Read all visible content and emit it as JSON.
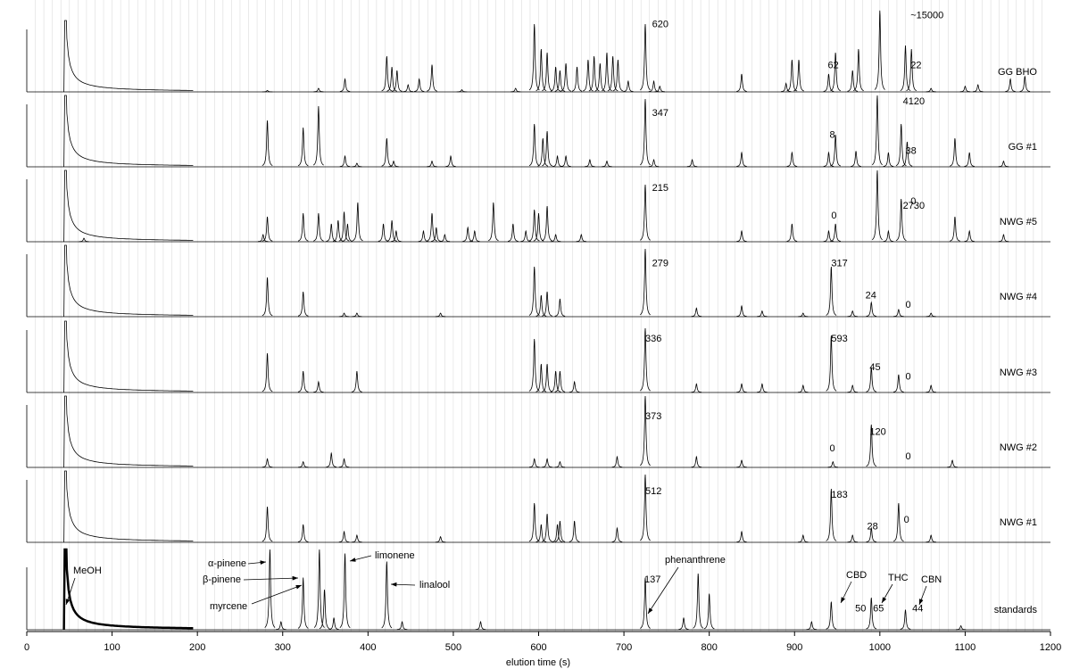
{
  "chart_data": {
    "type": "chromatogram",
    "xlabel": "elution time (s)",
    "xlim": [
      0,
      1200
    ],
    "xticks": [
      0,
      100,
      200,
      300,
      400,
      500,
      600,
      700,
      800,
      900,
      1000,
      1100,
      1200
    ],
    "grid": true,
    "minor_grid_step": 10,
    "color": "#000000",
    "series": [
      {
        "name": "GG BHO",
        "x": [
          45,
          282,
          342,
          373,
          422,
          428,
          434,
          447,
          460,
          475,
          510,
          573,
          595,
          603,
          610,
          620,
          625,
          632,
          645,
          658,
          665,
          672,
          680,
          687,
          693,
          705,
          725,
          735,
          742,
          838,
          890,
          897,
          905,
          940,
          948,
          968,
          975,
          1000,
          1030,
          1037,
          1060,
          1100,
          1115,
          1153,
          1170
        ],
        "values": [
          100,
          2,
          5,
          18,
          50,
          35,
          30,
          10,
          18,
          38,
          3,
          5,
          95,
          60,
          55,
          35,
          30,
          40,
          35,
          45,
          50,
          40,
          55,
          50,
          45,
          15,
          95,
          15,
          8,
          25,
          12,
          45,
          45,
          25,
          55,
          30,
          60,
          114,
          65,
          60,
          5,
          8,
          10,
          18,
          22
        ],
        "annotations": [
          {
            "x": 733,
            "y": 94,
            "label": "620"
          },
          {
            "x": 939,
            "y": 37,
            "label": "62"
          },
          {
            "x": 1036,
            "y": 107,
            "label": "~15000"
          },
          {
            "x": 1036,
            "y": 37,
            "label": "22"
          }
        ]
      },
      {
        "name": "GG #1",
        "x": [
          45,
          282,
          324,
          342,
          373,
          387,
          422,
          430,
          475,
          497,
          595,
          605,
          610,
          622,
          632,
          660,
          680,
          725,
          735,
          780,
          838,
          897,
          940,
          948,
          972,
          997,
          1010,
          1025,
          1032,
          1088,
          1105,
          1145
        ],
        "values": [
          100,
          65,
          55,
          85,
          15,
          5,
          40,
          8,
          8,
          15,
          60,
          40,
          50,
          15,
          15,
          10,
          8,
          95,
          10,
          10,
          20,
          20,
          20,
          45,
          22,
          100,
          20,
          60,
          35,
          40,
          20,
          8
        ],
        "annotations": [
          {
            "x": 733,
            "y": 75,
            "label": "347"
          },
          {
            "x": 941,
            "y": 44,
            "label": "8"
          },
          {
            "x": 1027,
            "y": 91,
            "label": "4120"
          },
          {
            "x": 1030,
            "y": 22,
            "label": "38"
          }
        ]
      },
      {
        "name": "NWG #5",
        "x": [
          45,
          67,
          277,
          282,
          324,
          342,
          357,
          365,
          372,
          376,
          388,
          418,
          428,
          433,
          465,
          475,
          480,
          490,
          517,
          525,
          547,
          570,
          585,
          595,
          600,
          610,
          620,
          650,
          725,
          838,
          897,
          940,
          948,
          997,
          1010,
          1025,
          1088,
          1105,
          1145
        ],
        "values": [
          100,
          5,
          10,
          35,
          40,
          40,
          25,
          30,
          42,
          25,
          55,
          25,
          30,
          15,
          15,
          40,
          20,
          10,
          20,
          15,
          55,
          25,
          15,
          45,
          40,
          50,
          10,
          10,
          80,
          15,
          25,
          15,
          25,
          100,
          15,
          60,
          35,
          15,
          10
        ],
        "annotations": [
          {
            "x": 733,
            "y": 75,
            "label": "215"
          },
          {
            "x": 943,
            "y": 36,
            "label": "0"
          },
          {
            "x": 1027,
            "y": 50,
            "label": "2730"
          },
          {
            "x": 1036,
            "y": 56,
            "label": "0"
          }
        ]
      },
      {
        "name": "NWG #4",
        "x": [
          45,
          282,
          324,
          372,
          387,
          485,
          595,
          603,
          610,
          625,
          725,
          785,
          838,
          862,
          910,
          943,
          968,
          990,
          1022,
          1060
        ],
        "values": [
          100,
          55,
          35,
          5,
          5,
          5,
          70,
          30,
          35,
          25,
          95,
          12,
          15,
          8,
          5,
          70,
          8,
          20,
          10,
          5
        ],
        "annotations": [
          {
            "x": 733,
            "y": 74,
            "label": "279"
          },
          {
            "x": 943,
            "y": 74,
            "label": "317"
          },
          {
            "x": 983,
            "y": 29,
            "label": "24"
          },
          {
            "x": 1030,
            "y": 16,
            "label": "0"
          }
        ]
      },
      {
        "name": "NWG #3",
        "x": [
          45,
          282,
          324,
          342,
          387,
          595,
          603,
          610,
          620,
          625,
          642,
          725,
          785,
          838,
          862,
          910,
          943,
          968,
          990,
          1022,
          1060
        ],
        "values": [
          100,
          55,
          30,
          15,
          30,
          75,
          40,
          40,
          30,
          30,
          15,
          90,
          12,
          12,
          12,
          10,
          80,
          10,
          35,
          25,
          10
        ],
        "annotations": [
          {
            "x": 725,
            "y": 75,
            "label": "336"
          },
          {
            "x": 943,
            "y": 75,
            "label": "593"
          },
          {
            "x": 988,
            "y": 35,
            "label": "45"
          },
          {
            "x": 1030,
            "y": 22,
            "label": "0"
          }
        ]
      },
      {
        "name": "NWG #2",
        "x": [
          45,
          282,
          324,
          357,
          372,
          595,
          610,
          625,
          692,
          725,
          785,
          838,
          945,
          990,
          1085
        ],
        "values": [
          100,
          12,
          8,
          20,
          12,
          12,
          12,
          8,
          15,
          100,
          15,
          10,
          8,
          60,
          10
        ],
        "annotations": [
          {
            "x": 725,
            "y": 71,
            "label": "373"
          },
          {
            "x": 941,
            "y": 26,
            "label": "0"
          },
          {
            "x": 988,
            "y": 49,
            "label": "120"
          },
          {
            "x": 1030,
            "y": 15,
            "label": "0"
          }
        ]
      },
      {
        "name": "NWG #1",
        "x": [
          45,
          282,
          324,
          372,
          387,
          485,
          595,
          603,
          610,
          622,
          625,
          642,
          692,
          725,
          838,
          910,
          943,
          968,
          990,
          1022,
          1060
        ],
        "values": [
          100,
          50,
          25,
          15,
          10,
          8,
          55,
          25,
          40,
          25,
          30,
          30,
          20,
          95,
          15,
          10,
          75,
          10,
          20,
          55,
          10
        ],
        "annotations": [
          {
            "x": 725,
            "y": 71,
            "label": "512"
          },
          {
            "x": 943,
            "y": 66,
            "label": "183"
          },
          {
            "x": 985,
            "y": 22,
            "label": "28"
          },
          {
            "x": 1028,
            "y": 31,
            "label": "0"
          }
        ]
      },
      {
        "name": "standards",
        "x": [
          45,
          285,
          298,
          324,
          343,
          349,
          360,
          373,
          422,
          440,
          532,
          725,
          770,
          787,
          800,
          920,
          943,
          990,
          1030,
          1095
        ],
        "values": [
          100,
          100,
          10,
          65,
          100,
          50,
          15,
          95,
          85,
          10,
          10,
          65,
          15,
          70,
          45,
          10,
          35,
          40,
          25,
          5
        ],
        "annotations": [
          {
            "x": 724,
            "y": 62,
            "label": "137"
          },
          {
            "x": 971,
            "y": 26,
            "label": "50"
          },
          {
            "x": 992,
            "y": 26,
            "label": "65"
          },
          {
            "x": 1038,
            "y": 26,
            "label": "44"
          }
        ],
        "compounds": [
          "MeOH",
          "α-pinene",
          "β-pinene",
          "myrcene",
          "limonene",
          "linalool",
          "phenanthrene",
          "CBD",
          "THC",
          "CBN"
        ]
      }
    ]
  }
}
